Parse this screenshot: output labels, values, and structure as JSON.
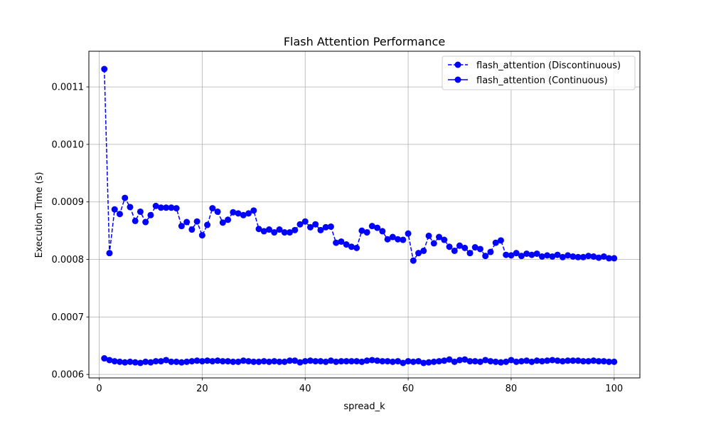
{
  "chart_data": {
    "type": "line",
    "title": "Flash Attention Performance",
    "xlabel": "spread_k",
    "ylabel": "Execution Time (s)",
    "xlim": [
      -2,
      105
    ],
    "ylim": [
      0.000594,
      0.001162
    ],
    "xticks": [
      0,
      20,
      40,
      60,
      80,
      100
    ],
    "yticks": [
      0.0006,
      0.0007,
      0.0008,
      0.0009,
      0.001,
      0.0011
    ],
    "ytick_labels": [
      "0.0006",
      "0.0007",
      "0.0008",
      "0.0009",
      "0.0010",
      "0.0011"
    ],
    "grid": true,
    "legend_position": "top-right",
    "color": "#0000ff",
    "series": [
      {
        "name": "flash_attention (Discontinuous)",
        "style": "dashed",
        "x": [
          1,
          2,
          3,
          4,
          5,
          6,
          7,
          8,
          9,
          10,
          11,
          12,
          13,
          14,
          15,
          16,
          17,
          18,
          19,
          20,
          21,
          22,
          23,
          24,
          25,
          26,
          27,
          28,
          29,
          30,
          31,
          32,
          33,
          34,
          35,
          36,
          37,
          38,
          39,
          40,
          41,
          42,
          43,
          44,
          45,
          46,
          47,
          48,
          49,
          50,
          51,
          52,
          53,
          54,
          55,
          56,
          57,
          58,
          59,
          60,
          61,
          62,
          63,
          64,
          65,
          66,
          67,
          68,
          69,
          70,
          71,
          72,
          73,
          74,
          75,
          76,
          77,
          78,
          79,
          80,
          81,
          82,
          83,
          84,
          85,
          86,
          87,
          88,
          89,
          90,
          91,
          92,
          93,
          94,
          95,
          96,
          97,
          98,
          99,
          100
        ],
        "y": [
          0.001131,
          0.000811,
          0.000887,
          0.000879,
          0.000907,
          0.000891,
          0.000867,
          0.000883,
          0.000865,
          0.000877,
          0.000893,
          0.00089,
          0.00089,
          0.00089,
          0.000889,
          0.000858,
          0.000865,
          0.000852,
          0.000866,
          0.000842,
          0.00086,
          0.000889,
          0.000883,
          0.000864,
          0.000869,
          0.000882,
          0.00088,
          0.000877,
          0.00088,
          0.000885,
          0.000853,
          0.000849,
          0.000852,
          0.000847,
          0.000852,
          0.000847,
          0.000847,
          0.000851,
          0.000861,
          0.000866,
          0.000856,
          0.000861,
          0.000851,
          0.000856,
          0.000857,
          0.000829,
          0.000831,
          0.000826,
          0.000822,
          0.00082,
          0.00085,
          0.000847,
          0.000858,
          0.000855,
          0.000849,
          0.000835,
          0.000839,
          0.000835,
          0.000834,
          0.000845,
          0.000798,
          0.000811,
          0.000815,
          0.000841,
          0.000828,
          0.000839,
          0.000834,
          0.000822,
          0.000815,
          0.000824,
          0.00082,
          0.000811,
          0.000821,
          0.000818,
          0.000806,
          0.000813,
          0.000829,
          0.000833,
          0.000808,
          0.000807,
          0.000811,
          0.000806,
          0.00081,
          0.000808,
          0.00081,
          0.000805,
          0.000807,
          0.000805,
          0.000808,
          0.000804,
          0.000807,
          0.000805,
          0.000804,
          0.000804,
          0.000806,
          0.000805,
          0.000803,
          0.000805,
          0.000802,
          0.000802
        ]
      },
      {
        "name": "flash_attention (Continuous)",
        "style": "solid",
        "x": [
          1,
          2,
          3,
          4,
          5,
          6,
          7,
          8,
          9,
          10,
          11,
          12,
          13,
          14,
          15,
          16,
          17,
          18,
          19,
          20,
          21,
          22,
          23,
          24,
          25,
          26,
          27,
          28,
          29,
          30,
          31,
          32,
          33,
          34,
          35,
          36,
          37,
          38,
          39,
          40,
          41,
          42,
          43,
          44,
          45,
          46,
          47,
          48,
          49,
          50,
          51,
          52,
          53,
          54,
          55,
          56,
          57,
          58,
          59,
          60,
          61,
          62,
          63,
          64,
          65,
          66,
          67,
          68,
          69,
          70,
          71,
          72,
          73,
          74,
          75,
          76,
          77,
          78,
          79,
          80,
          81,
          82,
          83,
          84,
          85,
          86,
          87,
          88,
          89,
          90,
          91,
          92,
          93,
          94,
          95,
          96,
          97,
          98,
          99,
          100
        ],
        "y": [
          0.000628,
          0.000625,
          0.000623,
          0.000622,
          0.000621,
          0.000622,
          0.000621,
          0.00062,
          0.000622,
          0.000621,
          0.000623,
          0.000623,
          0.000625,
          0.000622,
          0.000622,
          0.000621,
          0.000622,
          0.000623,
          0.000624,
          0.000623,
          0.000624,
          0.000623,
          0.000624,
          0.000623,
          0.000623,
          0.000622,
          0.000622,
          0.000624,
          0.000623,
          0.000622,
          0.000622,
          0.000623,
          0.000622,
          0.000623,
          0.000622,
          0.000622,
          0.000624,
          0.000624,
          0.000621,
          0.000623,
          0.000624,
          0.000623,
          0.000623,
          0.000622,
          0.000624,
          0.000622,
          0.000623,
          0.000623,
          0.000623,
          0.000623,
          0.000622,
          0.000624,
          0.000625,
          0.000624,
          0.000623,
          0.000623,
          0.000622,
          0.000623,
          0.00062,
          0.000623,
          0.000622,
          0.000623,
          0.00062,
          0.000621,
          0.000622,
          0.000623,
          0.000624,
          0.000626,
          0.000622,
          0.000625,
          0.000626,
          0.000623,
          0.000623,
          0.000622,
          0.000625,
          0.000623,
          0.000622,
          0.000621,
          0.000622,
          0.000625,
          0.000622,
          0.000623,
          0.000624,
          0.000622,
          0.000624,
          0.000623,
          0.000624,
          0.000625,
          0.000624,
          0.000623,
          0.000624,
          0.000624,
          0.000624,
          0.000623,
          0.000623,
          0.000624,
          0.000623,
          0.000623,
          0.000622,
          0.000622
        ]
      }
    ]
  }
}
